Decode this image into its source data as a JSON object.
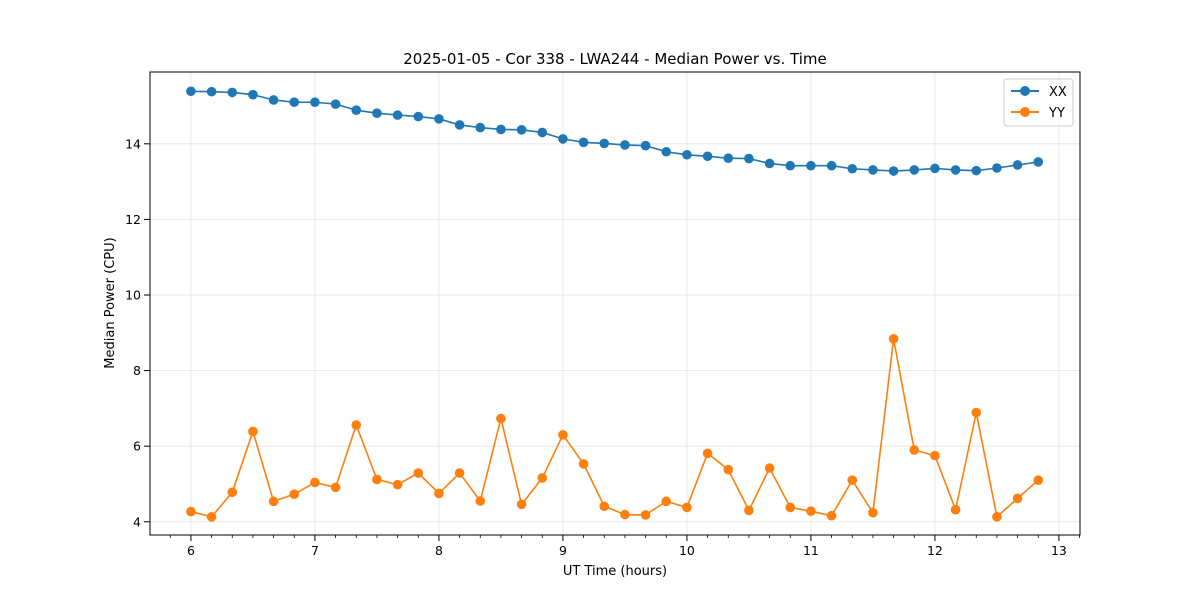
{
  "chart_data": {
    "type": "line",
    "title": "2025-01-05 - Cor 338 - LWA244 - Median Power vs. Time",
    "xlabel": "UT Time (hours)",
    "ylabel": "Median Power (CPU)",
    "xlim": [
      5.67,
      13.17
    ],
    "ylim": [
      3.65,
      15.9
    ],
    "xticks": [
      6,
      7,
      8,
      9,
      10,
      11,
      12,
      13
    ],
    "yticks": [
      4,
      6,
      8,
      10,
      12,
      14
    ],
    "grid": true,
    "legend_position": "top-right",
    "x": [
      6.0,
      6.1667,
      6.3333,
      6.5,
      6.6667,
      6.8333,
      7.0,
      7.1667,
      7.3333,
      7.5,
      7.6667,
      7.8333,
      8.0,
      8.1667,
      8.3333,
      8.5,
      8.6667,
      8.8333,
      9.0,
      9.1667,
      9.3333,
      9.5,
      9.6667,
      9.8333,
      10.0,
      10.1667,
      10.3333,
      10.5,
      10.6667,
      10.8333,
      11.0,
      11.1667,
      11.3333,
      11.5,
      11.6667,
      11.8333,
      12.0,
      12.1667,
      12.3333,
      12.5,
      12.6667,
      12.8333
    ],
    "series": [
      {
        "name": "XX",
        "color": "#1f77b4",
        "values": [
          15.39,
          15.38,
          15.36,
          15.3,
          15.16,
          15.1,
          15.1,
          15.05,
          14.89,
          14.81,
          14.76,
          14.72,
          14.66,
          14.5,
          14.43,
          14.38,
          14.37,
          14.3,
          14.13,
          14.04,
          14.01,
          13.97,
          13.95,
          13.79,
          13.71,
          13.67,
          13.62,
          13.61,
          13.48,
          13.42,
          13.42,
          13.42,
          13.34,
          13.31,
          13.28,
          13.31,
          13.35,
          13.31,
          13.29,
          13.36,
          13.44,
          13.52
        ]
      },
      {
        "name": "YY",
        "color": "#ff7f0e",
        "values": [
          4.27,
          4.13,
          4.78,
          6.39,
          4.54,
          4.73,
          5.04,
          4.91,
          6.56,
          5.12,
          4.98,
          5.29,
          4.75,
          5.29,
          4.55,
          6.73,
          4.46,
          5.16,
          6.3,
          5.53,
          4.41,
          4.19,
          4.18,
          4.54,
          4.38,
          5.81,
          5.38,
          4.3,
          5.42,
          4.38,
          4.28,
          4.16,
          5.1,
          4.24,
          8.84,
          5.9,
          5.75,
          4.32,
          6.89,
          4.13,
          4.62,
          5.1
        ]
      }
    ]
  }
}
